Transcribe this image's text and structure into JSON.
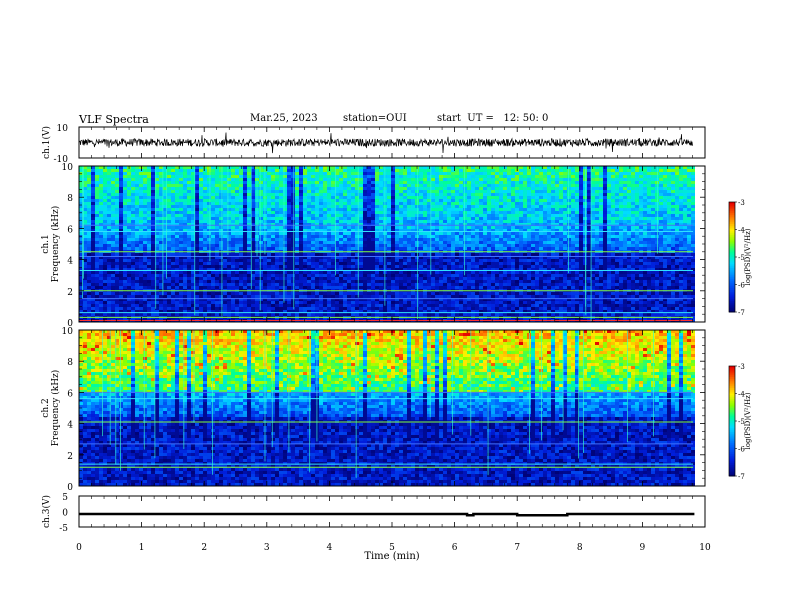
{
  "header": {
    "title": "VLF Spectra",
    "date": "Mar.25, 2023",
    "station": "station=OUI",
    "start": "start  UT =   12: 50: 0"
  },
  "colors": {
    "colormap": [
      "#000080",
      "#0040ff",
      "#00c0ff",
      "#00ff80",
      "#c0ff00",
      "#ffff00",
      "#ff8000",
      "#ff0000",
      "#ffffff"
    ]
  },
  "chart_data": [
    {
      "type": "line",
      "ylabel": "ch.1(V)",
      "ylim": [
        -10,
        10
      ],
      "yticks": [
        "10",
        "-10"
      ],
      "xlim": [
        0,
        10
      ]
    },
    {
      "type": "heatmap",
      "ylabel": "Frequency (kHz)",
      "channel": "ch.1",
      "ylim": [
        0,
        10
      ],
      "yticks": [
        "0",
        "2",
        "4",
        "6",
        "8",
        "10"
      ],
      "xlim": [
        0,
        9.83
      ],
      "colorbar": {
        "label": "log(PSD)(V²/Hz)",
        "range": [
          -7,
          -3
        ],
        "ticks": [
          "-3",
          "-4",
          "-5",
          "-6",
          "-7"
        ]
      }
    },
    {
      "type": "heatmap",
      "ylabel": "Frequency (kHz)",
      "channel": "ch.2",
      "ylim": [
        0,
        10
      ],
      "yticks": [
        "0",
        "2",
        "4",
        "6",
        "8",
        "10"
      ],
      "xlim": [
        0,
        9.83
      ],
      "colorbar": {
        "label": "log(PSD)(V²/Hz)",
        "range": [
          -7,
          -3
        ],
        "ticks": [
          "-3",
          "-4",
          "-5",
          "-6",
          "-7"
        ]
      }
    },
    {
      "type": "line",
      "ylabel": "ch.3(V)",
      "ylim": [
        -5,
        5
      ],
      "yticks": [
        "5",
        "0",
        "-5"
      ],
      "xlim": [
        0,
        10
      ],
      "x": [
        0,
        6.2,
        6.2,
        6.3,
        6.3,
        7.0,
        7.0,
        7.8,
        7.8,
        9.83
      ],
      "y": [
        -0.8,
        -0.8,
        -1.2,
        -1.2,
        -0.8,
        -0.8,
        -1.2,
        -1.2,
        -0.8,
        -0.8
      ]
    }
  ],
  "xaxis": {
    "label": "Time (min)",
    "ticks": [
      "0",
      "1",
      "2",
      "3",
      "4",
      "5",
      "6",
      "7",
      "8",
      "9",
      "10"
    ]
  }
}
